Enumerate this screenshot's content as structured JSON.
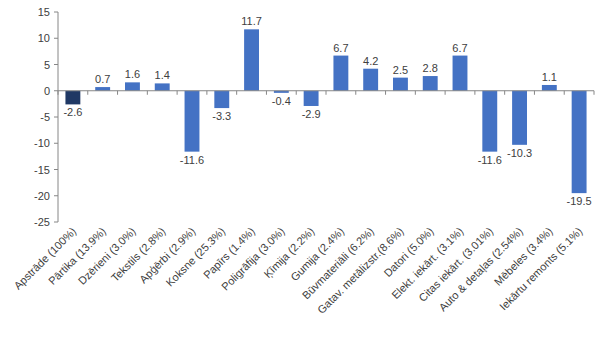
{
  "chart_data": {
    "type": "bar",
    "categories": [
      "Apstrāde (100%)",
      "Pārtika (13.9%)",
      "Dzērieni (3.0%)",
      "Tekstils (2.8%)",
      "Apģērbi (2.9%)",
      "Koksne (25.3%)",
      "Papīrs (1.4%)",
      "Poligrāfija (3.0%)",
      "Ķīmija (2.2%)",
      "Gumija (2.4%)",
      "Būvmateriāli (6.2%)",
      "Gatav. metālizstr.(8.6%)",
      "Datori (5.0%)",
      "Elekt. iekārt. (3.1%)",
      "Citas iekārt. (3.01%)",
      "Auto & detaļas (2.54%)",
      "Mēbeles (3.4%)",
      "Iekārtu remonts (5.1%)"
    ],
    "values": [
      -2.6,
      0.7,
      1.6,
      1.4,
      -11.6,
      -3.3,
      11.7,
      -0.4,
      -2.9,
      6.7,
      4.2,
      2.5,
      2.8,
      6.7,
      -11.6,
      -10.3,
      1.1,
      -19.5
    ],
    "colors": [
      "#1f3864",
      "#4472c4",
      "#4472c4",
      "#4472c4",
      "#4472c4",
      "#4472c4",
      "#4472c4",
      "#4472c4",
      "#4472c4",
      "#4472c4",
      "#4472c4",
      "#4472c4",
      "#4472c4",
      "#4472c4",
      "#4472c4",
      "#4472c4",
      "#4472c4",
      "#4472c4"
    ],
    "ylim": [
      -25,
      15
    ],
    "yticks": [
      -25,
      -20,
      -15,
      -10,
      -5,
      0,
      5,
      10,
      15
    ],
    "grid": false,
    "data_labels": true
  }
}
